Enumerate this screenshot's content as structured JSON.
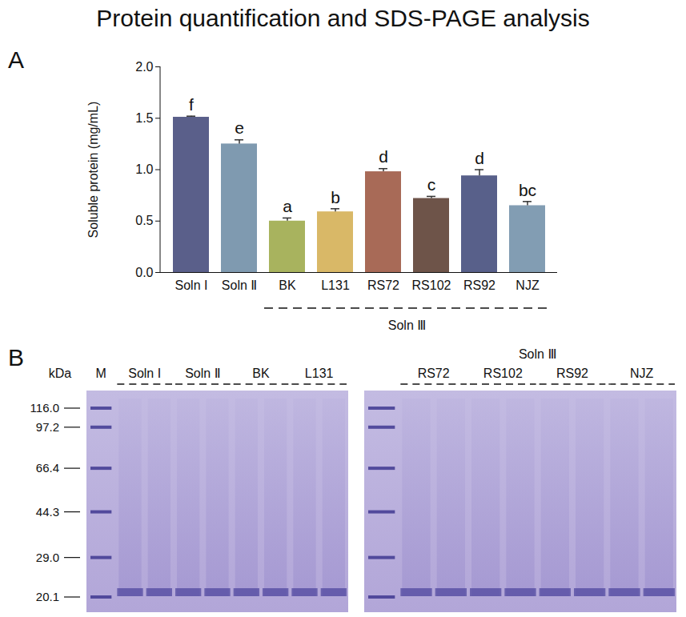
{
  "title": "Protein quantification and SDS-PAGE analysis",
  "chart_data": {
    "type": "bar",
    "panel_label": "A",
    "y_label": "Soluble protein (mg/mL)",
    "categories": [
      "Soln I",
      "Soln Ⅱ",
      "BK",
      "L131",
      "RS72",
      "RS102",
      "RS92",
      "NJZ"
    ],
    "values": [
      1.51,
      1.25,
      0.5,
      0.59,
      0.98,
      0.72,
      0.94,
      0.65
    ],
    "errors": [
      0.01,
      0.04,
      0.03,
      0.03,
      0.03,
      0.02,
      0.06,
      0.04
    ],
    "significance_letters": [
      "f",
      "e",
      "a",
      "b",
      "d",
      "c",
      "d",
      "bc"
    ],
    "colors": [
      "#5a5f8a",
      "#7f9ab0",
      "#a8b35e",
      "#d9b867",
      "#a86a57",
      "#6e5449",
      "#58608a",
      "#829db3"
    ],
    "groups": [
      {
        "label": "Soln Ⅲ",
        "categories": [
          "BK",
          "L131",
          "RS72",
          "RS102",
          "RS92",
          "NJZ"
        ]
      }
    ],
    "ylim": [
      0,
      2
    ],
    "yticks": [
      {
        "value": 0,
        "label": "0.0"
      },
      0.5,
      {
        "value": 1,
        "label": "1.0"
      },
      1.5,
      {
        "value": 2,
        "label": "2.0"
      }
    ],
    "grid": false
  },
  "gel": {
    "panel_label": "B",
    "unit": "kDa",
    "marker_sizes": [
      {
        "value": 116,
        "label": "116.0"
      },
      97.2,
      66.4,
      44.3,
      {
        "value": 29,
        "label": "29.0"
      },
      20.1
    ],
    "gels": [
      {
        "lanes": [
          "M",
          "Soln I",
          "Soln Ⅱ",
          "BK",
          "L131"
        ]
      },
      {
        "group": "Soln Ⅲ",
        "lanes": [
          null,
          "RS72",
          "RS102",
          "RS92",
          "NJZ"
        ]
      }
    ]
  }
}
